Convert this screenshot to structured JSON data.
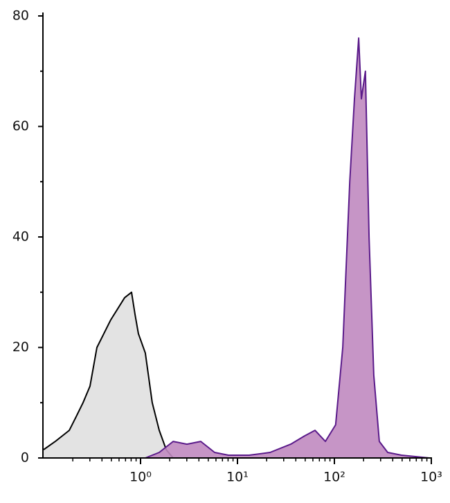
{
  "chart_data": {
    "type": "histogram-overlay",
    "log_x": true,
    "xlim": [
      0.1,
      1000
    ],
    "ylim": [
      0,
      80
    ],
    "xticks": [
      {
        "value": 1,
        "label": "10⁰"
      },
      {
        "value": 10,
        "label": "10¹"
      },
      {
        "value": 100,
        "label": "10²"
      },
      {
        "value": 1000,
        "label": "10³"
      }
    ],
    "xminor": [
      0.2,
      0.3,
      0.4,
      0.5,
      0.6,
      0.7,
      0.8,
      0.9,
      2,
      3,
      4,
      5,
      6,
      7,
      8,
      9,
      20,
      30,
      40,
      50,
      60,
      70,
      80,
      90,
      200,
      300,
      400,
      500,
      600,
      700,
      800,
      900
    ],
    "yticks": [
      0,
      20,
      40,
      60,
      80
    ],
    "yminor": [
      10,
      30,
      50,
      70
    ],
    "series": [
      {
        "color": "#000000",
        "fill": "#e0e0e0",
        "x": [
          0.1,
          0.132,
          0.184,
          0.217,
          0.255,
          0.301,
          0.355,
          0.418,
          0.493,
          0.581,
          0.685,
          0.808,
          0.876,
          0.951,
          1.12,
          1.32,
          1.56,
          1.84,
          2.17
        ],
        "values": [
          1.5,
          3,
          5,
          7.5,
          10,
          13,
          20,
          22.5,
          25,
          27,
          29,
          30,
          26,
          22.5,
          19,
          10,
          5,
          1.5,
          0
        ]
      },
      {
        "color": "#5a1a8a",
        "fill": "#c08ac0",
        "x": [
          1.12,
          1.56,
          2.17,
          3.01,
          4.18,
          5.81,
          8.07,
          13.2,
          21.7,
          35.5,
          49.3,
          63.1,
          80.7,
          103,
          122,
          144,
          161,
          178,
          190,
          209,
          228,
          255,
          291,
          355,
          493,
          953
        ],
        "values": [
          0,
          1,
          3,
          2.5,
          3,
          1,
          0.5,
          0.5,
          1,
          2.5,
          4,
          5,
          3,
          6,
          20,
          50,
          65,
          76,
          65,
          70,
          40,
          15,
          3,
          1,
          0.5,
          0
        ]
      }
    ]
  }
}
